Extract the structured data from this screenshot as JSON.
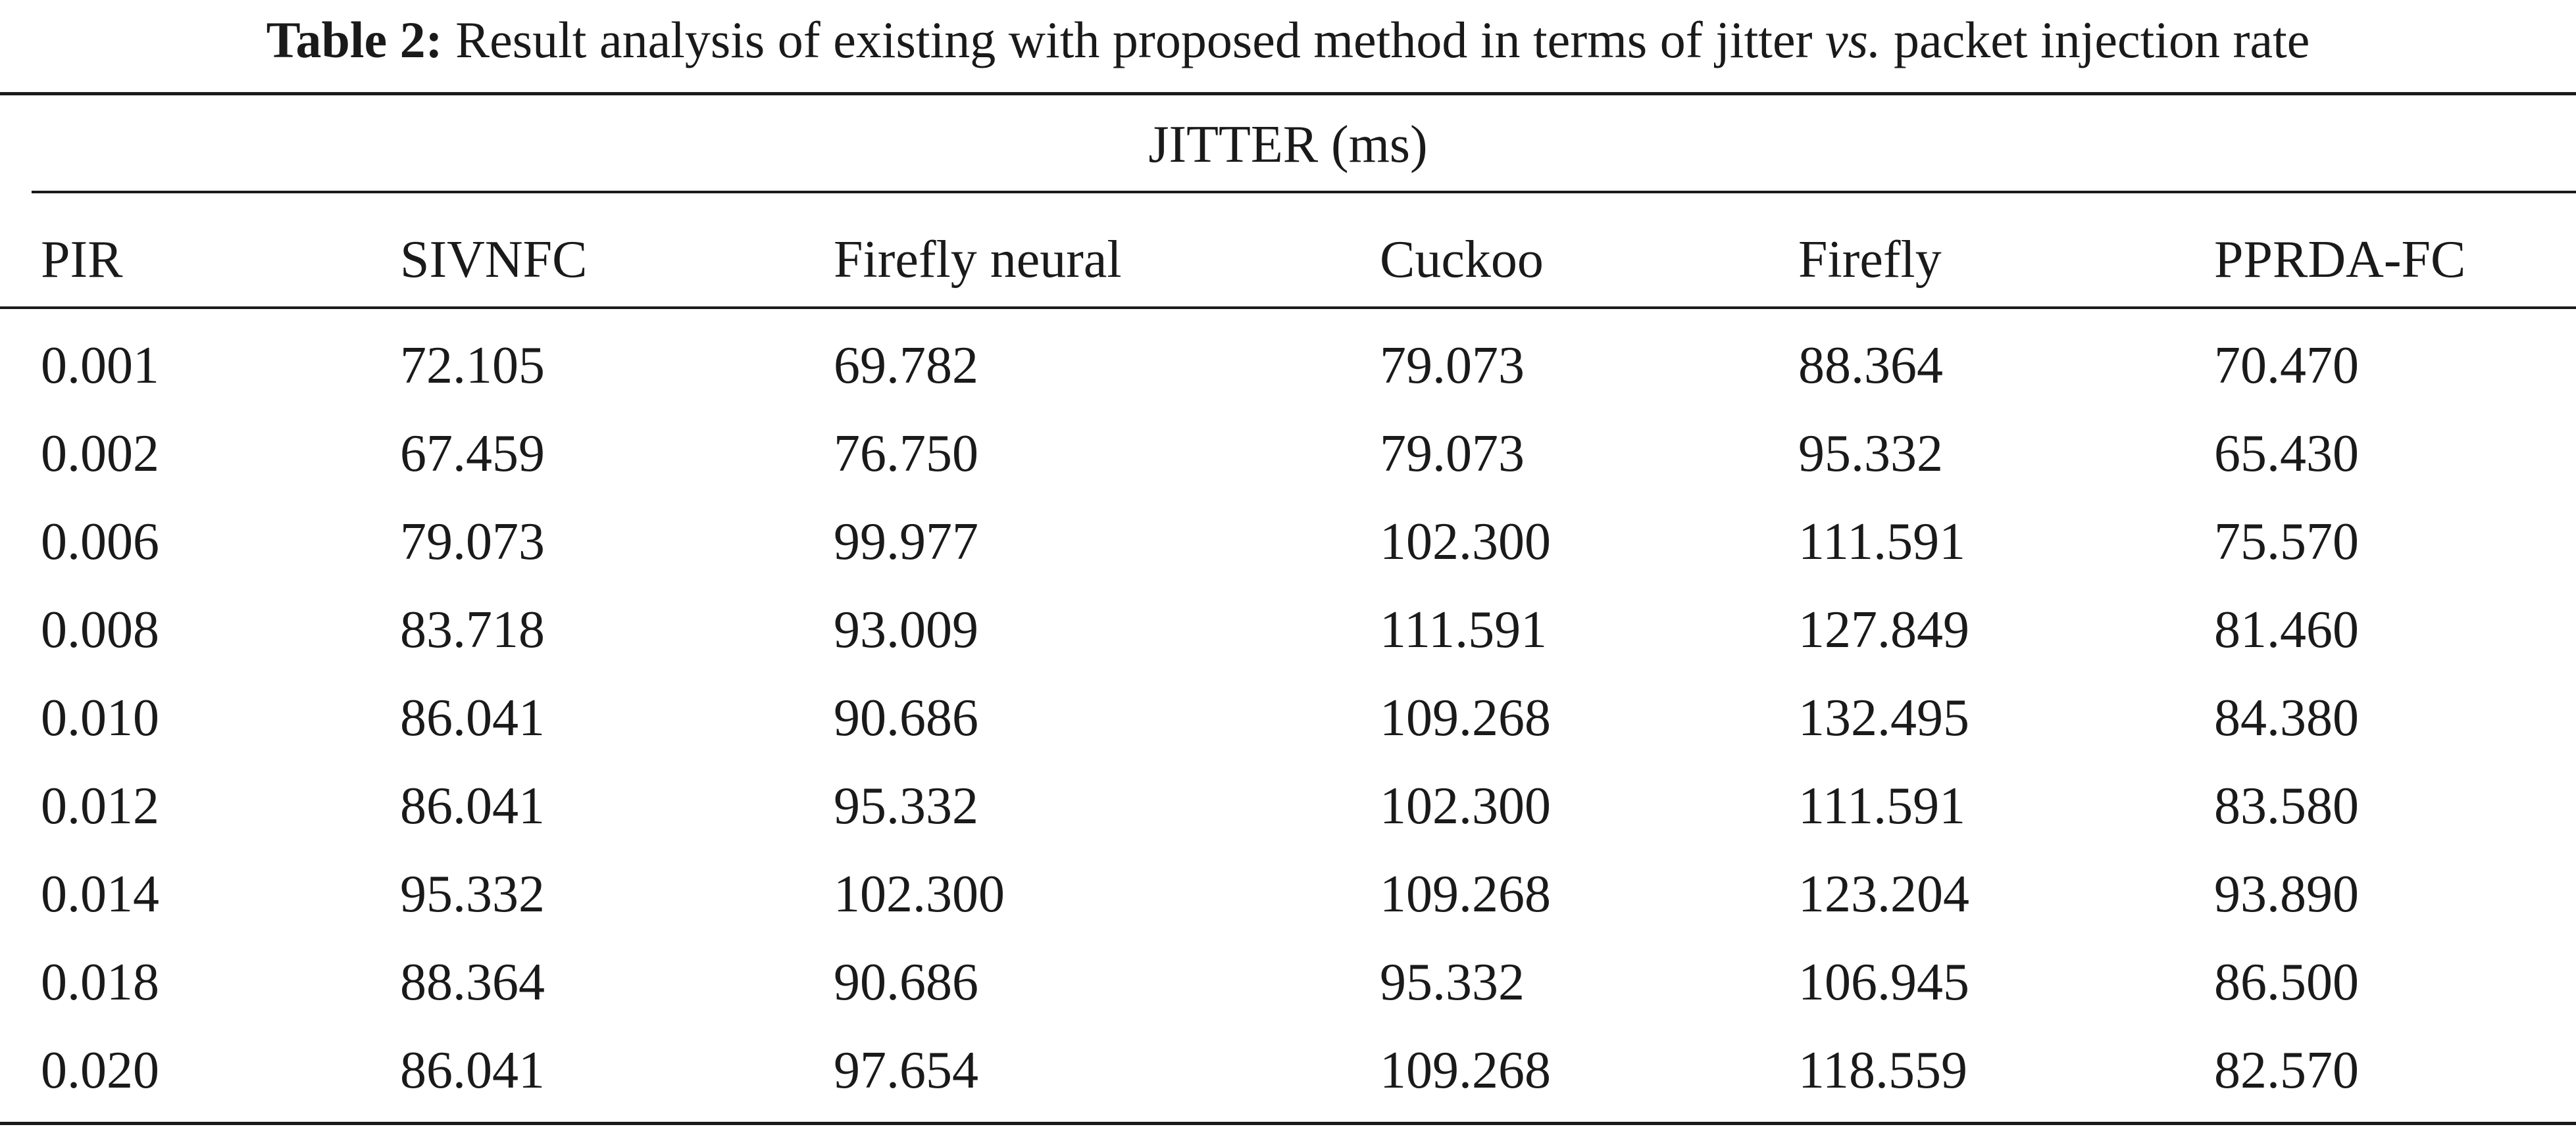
{
  "caption": {
    "label": "Table 2:",
    "text_before": "Result analysis of existing with proposed method in terms of jitter",
    "vs": "vs.",
    "text_after": "packet injection rate"
  },
  "group_header": "JITTER (ms)",
  "columns": [
    "PIR",
    "SIVNFC",
    "Firefly neural",
    "Cuckoo",
    "Firefly",
    "PPRDA-FC"
  ],
  "rows": [
    [
      "0.001",
      "72.105",
      "69.782",
      "79.073",
      "88.364",
      "70.470"
    ],
    [
      "0.002",
      "67.459",
      "76.750",
      "79.073",
      "95.332",
      "65.430"
    ],
    [
      "0.006",
      "79.073",
      "99.977",
      "102.300",
      "111.591",
      "75.570"
    ],
    [
      "0.008",
      "83.718",
      "93.009",
      "111.591",
      "127.849",
      "81.460"
    ],
    [
      "0.010",
      "86.041",
      "90.686",
      "109.268",
      "132.495",
      "84.380"
    ],
    [
      "0.012",
      "86.041",
      "95.332",
      "102.300",
      "111.591",
      "83.580"
    ],
    [
      "0.014",
      "95.332",
      "102.300",
      "109.268",
      "123.204",
      "93.890"
    ],
    [
      "0.018",
      "88.364",
      "90.686",
      "95.332",
      "106.945",
      "86.500"
    ],
    [
      "0.020",
      "86.041",
      "97.654",
      "109.268",
      "118.559",
      "82.570"
    ]
  ]
}
